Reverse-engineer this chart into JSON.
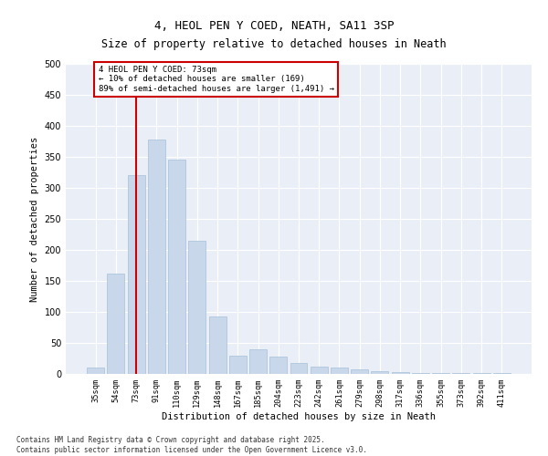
{
  "title1": "4, HEOL PEN Y COED, NEATH, SA11 3SP",
  "title2": "Size of property relative to detached houses in Neath",
  "xlabel": "Distribution of detached houses by size in Neath",
  "ylabel": "Number of detached properties",
  "categories": [
    "35sqm",
    "54sqm",
    "73sqm",
    "91sqm",
    "110sqm",
    "129sqm",
    "148sqm",
    "167sqm",
    "185sqm",
    "204sqm",
    "223sqm",
    "242sqm",
    "261sqm",
    "279sqm",
    "298sqm",
    "317sqm",
    "336sqm",
    "355sqm",
    "373sqm",
    "392sqm",
    "411sqm"
  ],
  "values": [
    10,
    162,
    320,
    378,
    345,
    215,
    93,
    30,
    40,
    28,
    18,
    12,
    10,
    8,
    5,
    3,
    2,
    1,
    1,
    1,
    2
  ],
  "bar_color": "#c8d8ea",
  "bar_edgecolor": "#a8c0d8",
  "reference_line_x": 2,
  "reference_line_color": "#cc0000",
  "annotation_text": "4 HEOL PEN Y COED: 73sqm\n← 10% of detached houses are smaller (169)\n89% of semi-detached houses are larger (1,491) →",
  "annotation_box_color": "#cc0000",
  "background_color": "#eaeff7",
  "ylim": [
    0,
    500
  ],
  "yticks": [
    0,
    50,
    100,
    150,
    200,
    250,
    300,
    350,
    400,
    450,
    500
  ],
  "footer1": "Contains HM Land Registry data © Crown copyright and database right 2025.",
  "footer2": "Contains public sector information licensed under the Open Government Licence v3.0."
}
